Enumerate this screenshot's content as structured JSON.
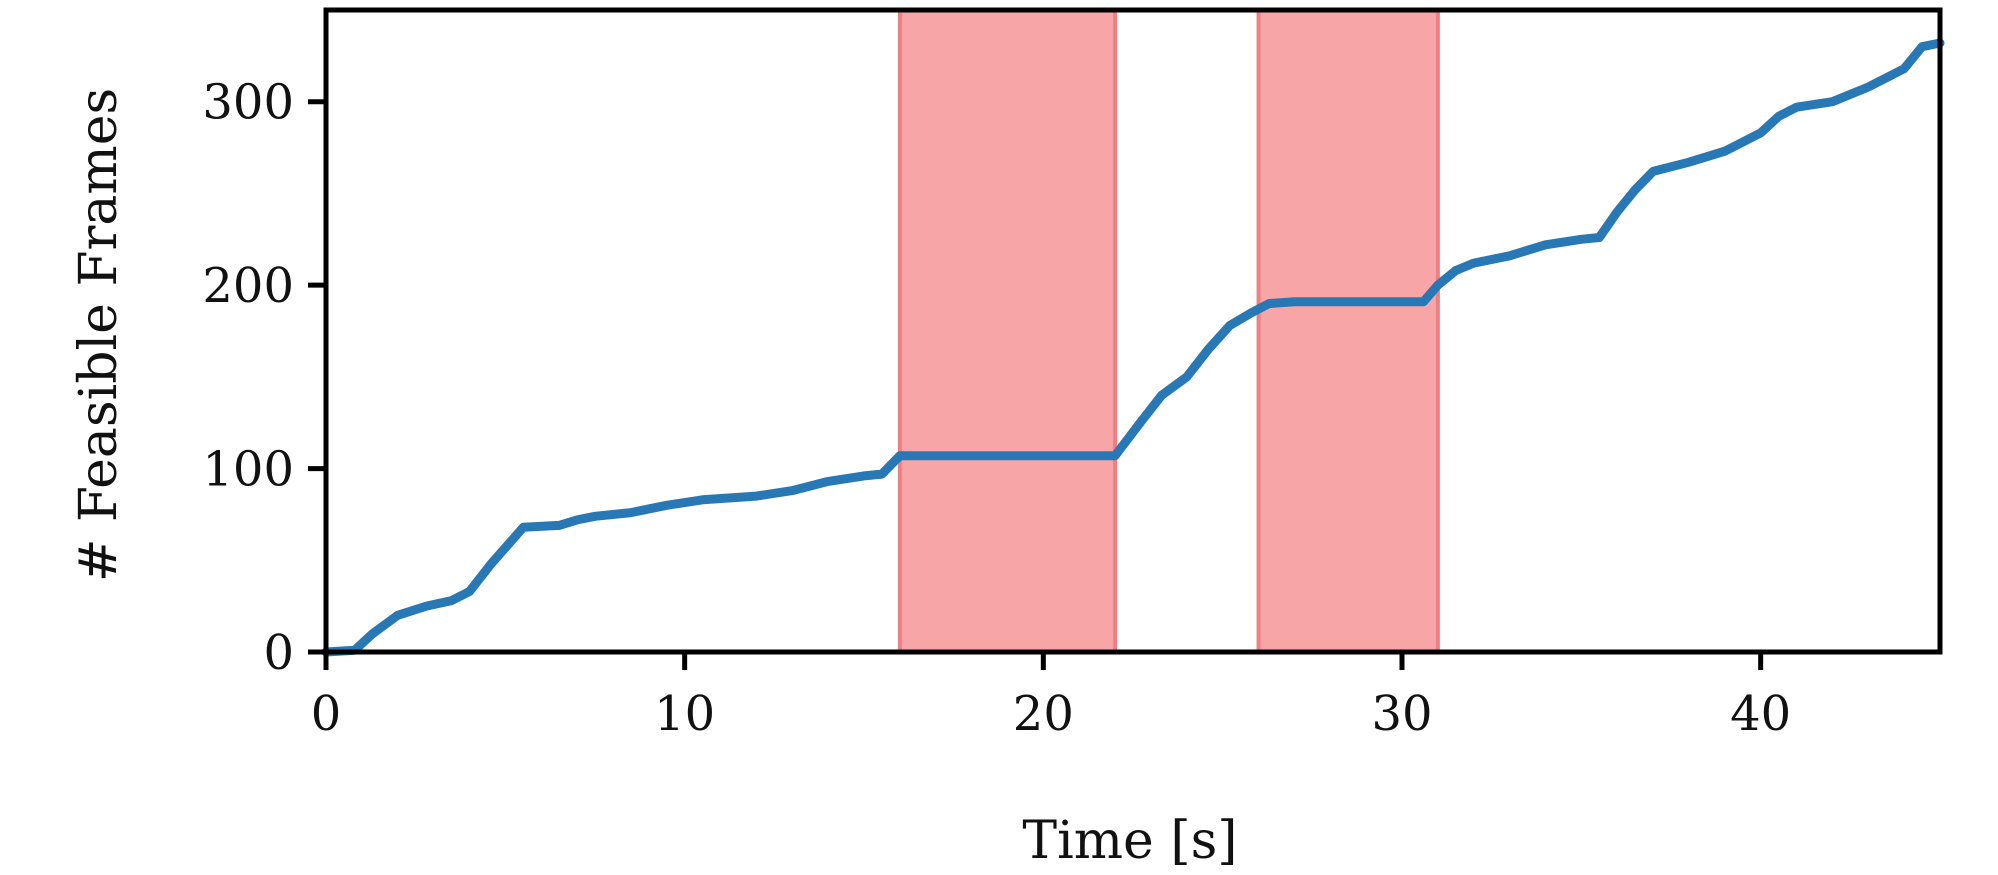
{
  "chart_data": {
    "type": "line",
    "xlabel": "Time [s]",
    "ylabel": "# Feasible Frames",
    "xlim": [
      0,
      45
    ],
    "ylim": [
      0,
      350
    ],
    "xticks": [
      0,
      10,
      20,
      30,
      40
    ],
    "yticks": [
      0,
      100,
      200,
      300
    ],
    "grid": false,
    "colors": {
      "line": "#2878b5",
      "band": "#f8a5a7",
      "band_edge": "#ef7f83",
      "axis": "#000000"
    },
    "shaded_intervals": [
      {
        "start": 16,
        "end": 22
      },
      {
        "start": 26,
        "end": 31
      }
    ],
    "series": [
      {
        "x": [
          0,
          0.8,
          1.3,
          2,
          2.8,
          3.5,
          4,
          4.6,
          5.5,
          6.5,
          7,
          7.5,
          8.5,
          9.5,
          10.5,
          12,
          13,
          14,
          15,
          15.5,
          16,
          17,
          18,
          19,
          20,
          21,
          22,
          22.7,
          23.3,
          24,
          24.6,
          25.2,
          25.8,
          26.3,
          27,
          28,
          29,
          30,
          30.6,
          31,
          31.5,
          32,
          33,
          34,
          35,
          35.5,
          36,
          36.5,
          37,
          38,
          39,
          40,
          40.5,
          41,
          42,
          43,
          44,
          44.5,
          45
        ],
        "y": [
          0,
          1,
          10,
          20,
          25,
          28,
          33,
          48,
          68,
          69,
          72,
          74,
          76,
          80,
          83,
          85,
          88,
          93,
          96,
          97,
          107,
          107,
          107,
          107,
          107,
          107,
          107,
          125,
          140,
          150,
          165,
          178,
          185,
          190,
          191,
          191,
          191,
          191,
          191,
          200,
          208,
          212,
          216,
          222,
          225,
          226,
          240,
          252,
          262,
          267,
          273,
          283,
          292,
          297,
          300,
          308,
          318,
          330,
          332
        ]
      }
    ]
  }
}
